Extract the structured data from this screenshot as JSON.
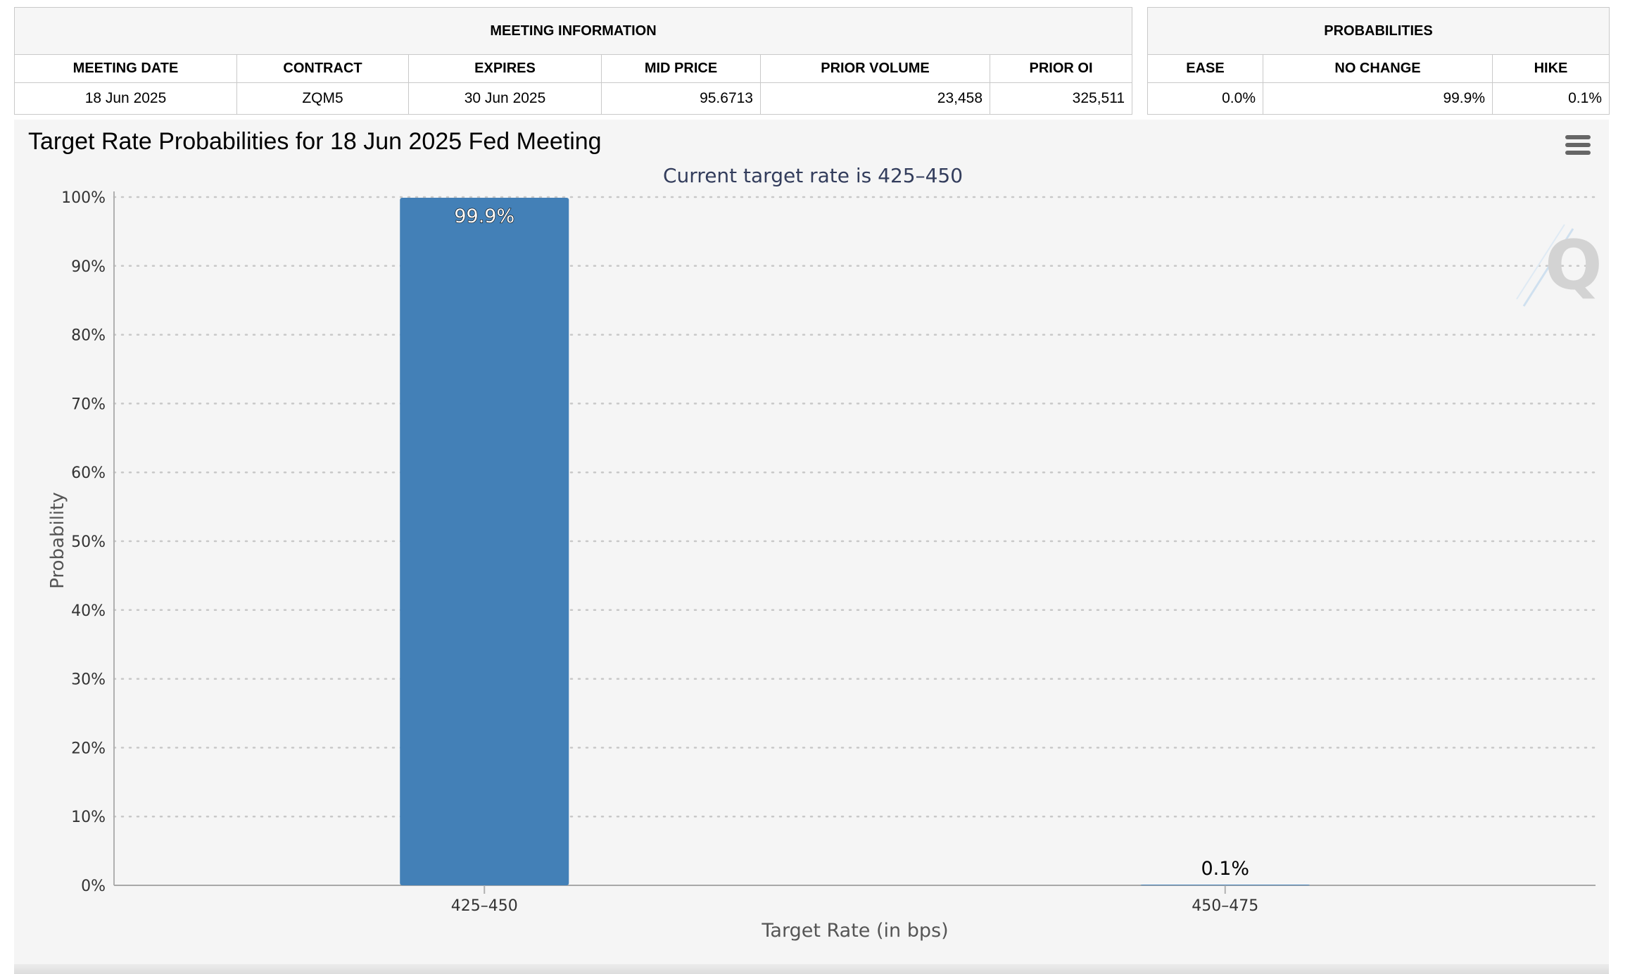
{
  "meeting_info": {
    "section_title": "MEETING INFORMATION",
    "headers": [
      "MEETING DATE",
      "CONTRACT",
      "EXPIRES",
      "MID PRICE",
      "PRIOR VOLUME",
      "PRIOR OI"
    ],
    "row": [
      "18 Jun 2025",
      "ZQM5",
      "30 Jun 2025",
      "95.6713",
      "23,458",
      "325,511"
    ]
  },
  "probabilities": {
    "section_title": "PROBABILITIES",
    "headers": [
      "EASE",
      "NO CHANGE",
      "HIKE"
    ],
    "row": [
      "0.0%",
      "99.9%",
      "0.1%"
    ]
  },
  "chart": {
    "menu_icon": "hamburger-menu-icon",
    "watermark_icon": "q-logo-watermark"
  },
  "chart_data": {
    "type": "bar",
    "title": "Target Rate Probabilities for 18 Jun 2025 Fed Meeting",
    "subtitle": "Current target rate is 425–450",
    "xlabel": "Target Rate (in bps)",
    "ylabel": "Probability",
    "categories": [
      "425–450",
      "450–475"
    ],
    "values": [
      99.9,
      0.1
    ],
    "data_labels": [
      "99.9%",
      "0.1%"
    ],
    "ylim": [
      0,
      100
    ],
    "yticks": [
      "0%",
      "10%",
      "20%",
      "30%",
      "40%",
      "50%",
      "60%",
      "70%",
      "80%",
      "90%",
      "100%"
    ],
    "grid": true,
    "bar_color": "#4380b7"
  }
}
